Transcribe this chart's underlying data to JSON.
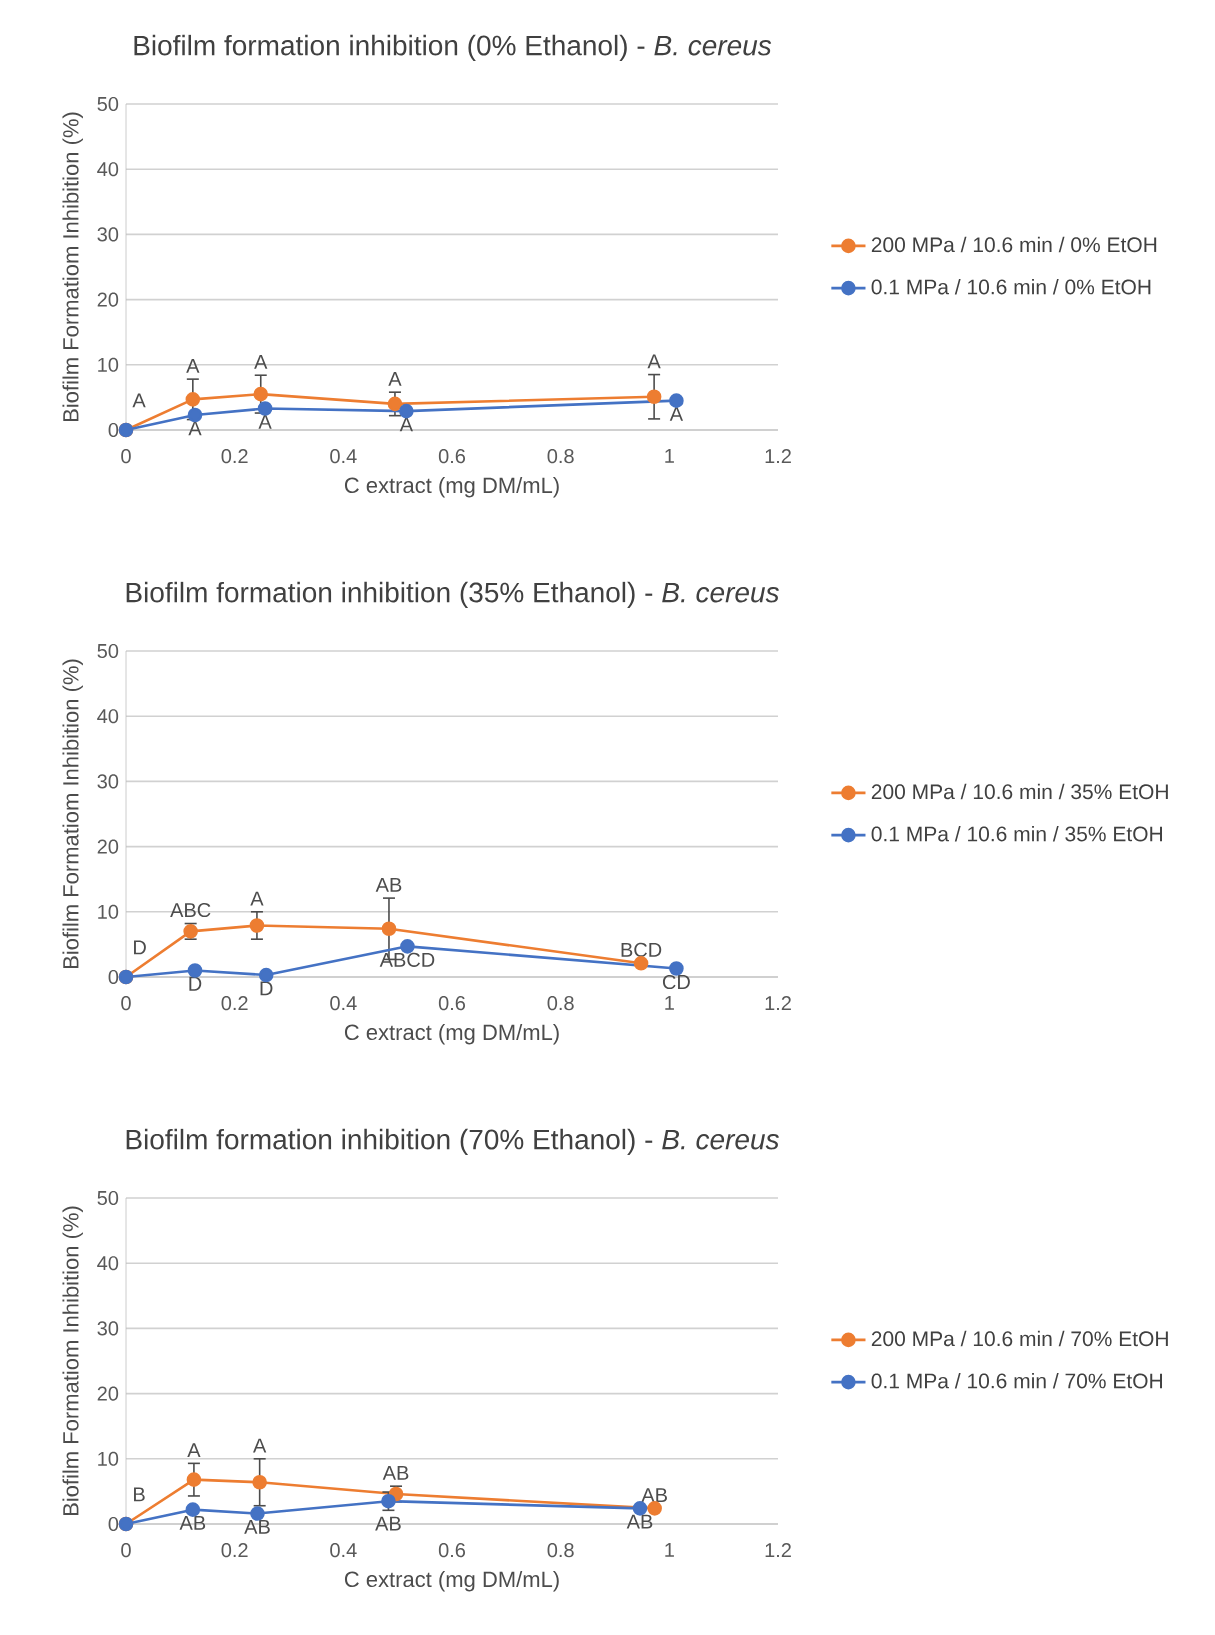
{
  "chart_data": [
    {
      "type": "line",
      "title": "Biofilm formation inhibition (0% Ethanol) - *B. cereus*",
      "xlabel": "C extract (mg DM/mL)",
      "ylabel": "Biofilm Formatiom Inhibition (%)",
      "xlim": [
        0,
        1.2
      ],
      "ylim": [
        0,
        50
      ],
      "xticks": [
        0,
        0.2,
        0.4,
        0.6,
        0.8,
        1,
        1.2
      ],
      "yticks": [
        0,
        10,
        20,
        30,
        40,
        50
      ],
      "grid": "y",
      "legend": "right",
      "marker": "circle",
      "series": [
        {
          "name": "200 MPa / 10.6 min / 0% EtOH",
          "color": "#ed7d31",
          "x": [
            0,
            0.123,
            0.248,
            0.495,
            0.972
          ],
          "values": [
            0,
            4.7,
            5.5,
            4.0,
            5.1
          ],
          "errors": [
            null,
            3.1,
            2.9,
            1.8,
            3.4
          ]
        },
        {
          "name": "0.1 MPa / 10.6 min / 0% EtOH",
          "color": "#4472c4",
          "x": [
            0,
            0.127,
            0.256,
            0.516,
            1.013
          ],
          "values": [
            0,
            2.3,
            3.3,
            2.9,
            4.5
          ]
        }
      ],
      "annotations": [
        {
          "text": "A",
          "x": 0,
          "y": 0
        },
        {
          "text": "A",
          "x": 0.123,
          "y": 4.7
        },
        {
          "text": "A",
          "x": 0.248,
          "y": 5.5
        },
        {
          "text": "A",
          "x": 0.495,
          "y": 4.0
        },
        {
          "text": "A",
          "x": 0.972,
          "y": 5.1
        },
        {
          "text": "A",
          "x": 0.127,
          "y": 2.3
        },
        {
          "text": "A",
          "x": 0.256,
          "y": 3.3
        },
        {
          "text": "A",
          "x": 0.516,
          "y": 2.9
        },
        {
          "text": "A",
          "x": 1.013,
          "y": 4.5
        }
      ]
    },
    {
      "type": "line",
      "title": "Biofilm formation inhibition (35% Ethanol) - *B. cereus*",
      "xlabel": "C extract (mg DM/mL)",
      "ylabel": "Biofilm Formatiom Inhibition (%)",
      "xlim": [
        0,
        1.2
      ],
      "ylim": [
        0,
        50
      ],
      "xticks": [
        0,
        0.2,
        0.4,
        0.6,
        0.8,
        1,
        1.2
      ],
      "yticks": [
        0,
        10,
        20,
        30,
        40,
        50
      ],
      "grid": "y",
      "legend": "right",
      "marker": "circle",
      "series": [
        {
          "name": "200 MPa / 10.6 min / 35% EtOH",
          "color": "#ed7d31",
          "x": [
            0,
            0.119,
            0.241,
            0.484,
            0.948
          ],
          "values": [
            0,
            7.0,
            7.9,
            7.4,
            2.1
          ],
          "errors": [
            null,
            1.2,
            2.1,
            4.7,
            null
          ]
        },
        {
          "name": "0.1 MPa / 10.6 min / 35% EtOH",
          "color": "#4472c4",
          "x": [
            0,
            0.127,
            0.258,
            0.518,
            1.013
          ],
          "values": [
            0,
            1.0,
            0.3,
            4.7,
            1.3
          ]
        }
      ],
      "annotations": [
        {
          "text": "D",
          "x": 0,
          "y": 0
        },
        {
          "text": "ABC",
          "x": 0.119,
          "y": 7.0
        },
        {
          "text": "A",
          "x": 0.241,
          "y": 7.9
        },
        {
          "text": "AB",
          "x": 0.484,
          "y": 7.4
        },
        {
          "text": "BCD",
          "x": 0.948,
          "y": 2.1
        },
        {
          "text": "D",
          "x": 0.127,
          "y": 1.0
        },
        {
          "text": "D",
          "x": 0.258,
          "y": 0.3
        },
        {
          "text": "ABCD",
          "x": 0.518,
          "y": 4.7
        },
        {
          "text": "CD",
          "x": 1.013,
          "y": 1.3
        }
      ]
    },
    {
      "type": "line",
      "title": "Biofilm formation inhibition (70% Ethanol) - *B. cereus*",
      "xlabel": "C extract (mg DM/mL)",
      "ylabel": "Biofilm Formatiom Inhibition (%)",
      "xlim": [
        0,
        1.2
      ],
      "ylim": [
        0,
        50
      ],
      "xticks": [
        0,
        0.2,
        0.4,
        0.6,
        0.8,
        1,
        1.2
      ],
      "yticks": [
        0,
        10,
        20,
        30,
        40,
        50
      ],
      "grid": "y",
      "legend": "right",
      "marker": "circle",
      "series": [
        {
          "name": "200 MPa / 10.6 min / 70% EtOH",
          "color": "#ed7d31",
          "x": [
            0,
            0.125,
            0.246,
            0.497,
            0.973
          ],
          "values": [
            0,
            6.8,
            6.4,
            4.6,
            2.4
          ],
          "errors": [
            null,
            2.5,
            3.6,
            1.2,
            null
          ]
        },
        {
          "name": "0.1 MPa / 10.6 min / 70% EtOH",
          "color": "#4472c4",
          "x": [
            0,
            0.123,
            0.242,
            0.483,
            0.946
          ],
          "values": [
            0,
            2.2,
            1.6,
            3.5,
            2.4
          ],
          "errors": [
            null,
            null,
            null,
            1.4,
            null
          ]
        }
      ],
      "annotations": [
        {
          "text": "B",
          "x": 0,
          "y": 0
        },
        {
          "text": "A",
          "x": 0.125,
          "y": 6.8
        },
        {
          "text": "A",
          "x": 0.246,
          "y": 6.4
        },
        {
          "text": "AB",
          "x": 0.497,
          "y": 4.6
        },
        {
          "text": "AB",
          "x": 0.973,
          "y": 2.4
        },
        {
          "text": "AB",
          "x": 0.123,
          "y": 2.2
        },
        {
          "text": "AB",
          "x": 0.242,
          "y": 1.6
        },
        {
          "text": "AB",
          "x": 0.483,
          "y": 3.5
        },
        {
          "text": "AB",
          "x": 0.946,
          "y": 2.4
        }
      ]
    }
  ]
}
